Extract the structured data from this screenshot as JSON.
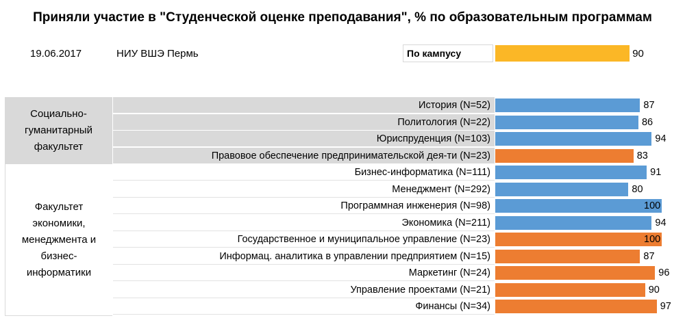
{
  "title": "Приняли участие в \"Студенческой оценке преподавания\", % по образовательным программам",
  "date": "19.06.2017",
  "org": "НИУ ВШЭ Пермь",
  "campus": {
    "label": "По кампусу",
    "value": 90,
    "color": "#fbb726"
  },
  "colors": {
    "blue": "#5b9bd5",
    "orange": "#ed7d31",
    "band": "#d9d9d9"
  },
  "faculties": [
    {
      "name": "Социально-гуманитарный факультет",
      "lines": [
        "Социально-",
        "гуманитарный",
        "факультет"
      ]
    },
    {
      "name": "Факультет экономики, менеджмента и бизнес-информатики",
      "lines": [
        "Факультет",
        "экономики,",
        "менеджмента и",
        "бизнес-",
        "информатики"
      ]
    }
  ],
  "chart_data": {
    "type": "bar",
    "title": "Приняли участие в \"Студенческой оценке преподавания\", % по образовательным программам",
    "xlim": [
      0,
      100
    ],
    "rows": [
      {
        "label": "История (N=52)",
        "value": 87,
        "color": "#5b9bd5",
        "faculty": 0
      },
      {
        "label": "Политология (N=22)",
        "value": 86,
        "color": "#5b9bd5",
        "faculty": 0
      },
      {
        "label": "Юриспруденция (N=103)",
        "value": 94,
        "color": "#5b9bd5",
        "faculty": 0
      },
      {
        "label": "Правовое обеспечение предпринимательской дея-ти (N=23)",
        "value": 83,
        "color": "#ed7d31",
        "faculty": 0
      },
      {
        "label": "Бизнес-информатика (N=111)",
        "value": 91,
        "color": "#5b9bd5",
        "faculty": 1
      },
      {
        "label": "Менеджмент (N=292)",
        "value": 80,
        "color": "#5b9bd5",
        "faculty": 1
      },
      {
        "label": "Программная инженерия (N=98)",
        "value": 100,
        "color": "#5b9bd5",
        "faculty": 1
      },
      {
        "label": "Экономика (N=211)",
        "value": 94,
        "color": "#5b9bd5",
        "faculty": 1
      },
      {
        "label": "Государственное и муниципальное управление (N=23)",
        "value": 100,
        "color": "#ed7d31",
        "faculty": 1
      },
      {
        "label": "Информац. аналитика в управлении предприятием (N=15)",
        "value": 87,
        "color": "#ed7d31",
        "faculty": 1
      },
      {
        "label": "Маркетинг (N=24)",
        "value": 96,
        "color": "#ed7d31",
        "faculty": 1
      },
      {
        "label": "Управление проектами (N=21)",
        "value": 90,
        "color": "#ed7d31",
        "faculty": 1
      },
      {
        "label": "Финансы (N=34)",
        "value": 97,
        "color": "#ed7d31",
        "faculty": 1
      }
    ]
  }
}
